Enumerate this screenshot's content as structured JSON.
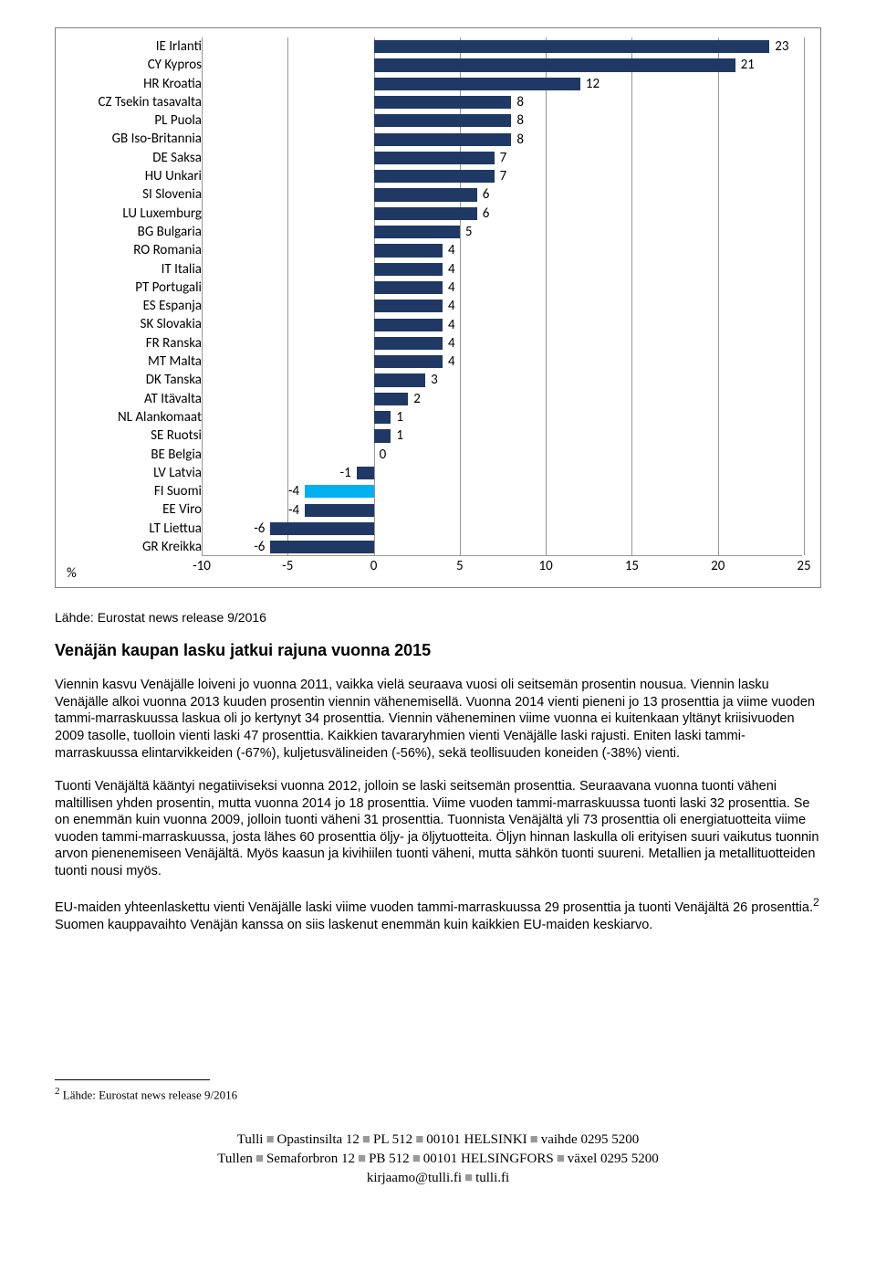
{
  "chart": {
    "type": "bar-horizontal",
    "xmin": -10,
    "xmax": 25,
    "xtick_step": 5,
    "xticks": [
      -10,
      -5,
      0,
      5,
      10,
      15,
      20,
      25
    ],
    "bar_color_default": "#1f3864",
    "bar_color_highlight": "#00b0f0",
    "gridline_color": "#969696",
    "label_color": "#000000",
    "label_fontsize": 15,
    "percent_label": "%",
    "rows": [
      {
        "label": "IE Irlanti",
        "value": 23,
        "highlight": false
      },
      {
        "label": "CY Kypros",
        "value": 21,
        "highlight": false
      },
      {
        "label": "HR Kroatia",
        "value": 12,
        "highlight": false
      },
      {
        "label": "CZ Tsekin tasavalta",
        "value": 8,
        "highlight": false
      },
      {
        "label": "PL Puola",
        "value": 8,
        "highlight": false
      },
      {
        "label": "GB Iso-Britannia",
        "value": 8,
        "highlight": false
      },
      {
        "label": "DE Saksa",
        "value": 7,
        "highlight": false
      },
      {
        "label": "HU Unkari",
        "value": 7,
        "highlight": false
      },
      {
        "label": "SI Slovenia",
        "value": 6,
        "highlight": false
      },
      {
        "label": "LU Luxemburg",
        "value": 6,
        "highlight": false
      },
      {
        "label": "BG Bulgaria",
        "value": 5,
        "highlight": false
      },
      {
        "label": "RO Romania",
        "value": 4,
        "highlight": false
      },
      {
        "label": "IT Italia",
        "value": 4,
        "highlight": false
      },
      {
        "label": "PT Portugali",
        "value": 4,
        "highlight": false
      },
      {
        "label": "ES Espanja",
        "value": 4,
        "highlight": false
      },
      {
        "label": "SK Slovakia",
        "value": 4,
        "highlight": false
      },
      {
        "label": "FR Ranska",
        "value": 4,
        "highlight": false
      },
      {
        "label": "MT Malta",
        "value": 4,
        "highlight": false
      },
      {
        "label": "DK Tanska",
        "value": 3,
        "highlight": false
      },
      {
        "label": "AT Itävalta",
        "value": 2,
        "highlight": false
      },
      {
        "label": "NL Alankomaat",
        "value": 1,
        "highlight": false
      },
      {
        "label": "SE Ruotsi",
        "value": 1,
        "highlight": false
      },
      {
        "label": "BE Belgia",
        "value": 0,
        "highlight": false
      },
      {
        "label": "LV Latvia",
        "value": -1,
        "highlight": false
      },
      {
        "label": "FI Suomi",
        "value": -4,
        "highlight": true
      },
      {
        "label": "EE Viro",
        "value": -4,
        "highlight": false
      },
      {
        "label": "LT Liettua",
        "value": -6,
        "highlight": false
      },
      {
        "label": "GR Kreikka",
        "value": -6,
        "highlight": false
      }
    ]
  },
  "source_line": "Lähde: Eurostat news release 9/2016",
  "section_heading": "Venäjän kaupan lasku jatkui rajuna vuonna 2015",
  "para1": "Viennin kasvu Venäjälle loiveni jo vuonna 2011, vaikka vielä seuraava vuosi oli seitsemän prosentin nousua. Viennin lasku Venäjälle alkoi vuonna 2013 kuuden prosentin viennin vähenemisellä. Vuonna 2014 vienti pieneni jo 13 prosenttia ja viime vuoden tammi-marraskuussa laskua oli jo kertynyt 34 prosenttia. Viennin väheneminen viime vuonna ei kuitenkaan yltänyt kriisivuoden 2009 tasolle, tuolloin vienti laski 47 prosenttia. Kaikkien tavararyhmien vienti Venäjälle laski rajusti. Eniten laski tammi-marraskuussa elintarvikkeiden (-67%), kuljetusvälineiden (-56%), sekä teollisuuden koneiden (-38%) vienti.",
  "para2": "Tuonti Venäjältä kääntyi negatiiviseksi vuonna 2012, jolloin se laski seitsemän prosenttia. Seuraavana vuonna tuonti väheni maltillisen yhden prosentin, mutta vuonna 2014 jo 18 prosenttia. Viime vuoden tammi-marraskuussa tuonti laski 32 prosenttia. Se on enemmän kuin vuonna 2009, jolloin tuonti väheni 31 prosenttia. Tuonnista Venäjältä yli 73 prosenttia oli energiatuotteita viime vuoden tammi-marraskuussa, josta lähes 60 prosenttia öljy- ja öljytuotteita. Öljyn hinnan laskulla oli erityisen suuri vaikutus tuonnin arvon pienenemiseen Venäjältä. Myös kaasun ja kivihiilen tuonti väheni, mutta sähkön tuonti suureni. Metallien ja metallituotteiden tuonti nousi myös.",
  "para3_pre": "EU-maiden yhteenlaskettu vienti Venäjälle laski viime vuoden tammi-marraskuussa 29 prosenttia ja tuonti Venäjältä 26 prosenttia.",
  "para3_sup": "2",
  "para3_post": " Suomen kauppavaihto Venäjän kanssa on siis laskenut enemmän kuin kaikkien EU-maiden keskiarvo.",
  "footnote_sup": "2",
  "footnote_text": " Lähde: Eurostat news release 9/2016",
  "footer": {
    "l1a": "Tulli",
    "l1b": "Opastinsilta 12",
    "l1c": "PL 512",
    "l1d": "00101 HELSINKI",
    "l1e": "vaihde 0295 5200",
    "l2a": "Tullen",
    "l2b": "Semaforbron 12",
    "l2c": "PB 512",
    "l2d": "00101 HELSINGFORS",
    "l2e": "växel 0295 5200",
    "l3a": "kirjaamo@tulli.fi",
    "l3b": "tulli.fi"
  }
}
